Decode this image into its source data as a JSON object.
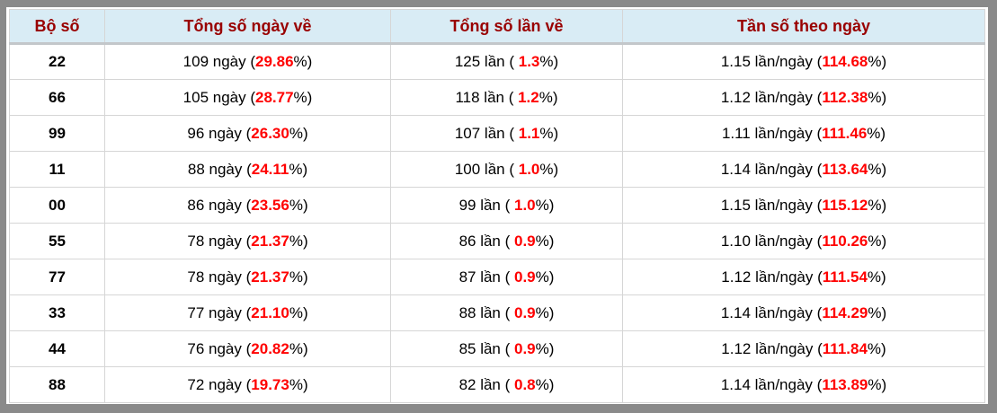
{
  "colors": {
    "frame_gray": "#8a8a8a",
    "header_bg": "#d9ecf5",
    "header_text": "#990000",
    "highlight_red": "#ff0000",
    "grid_line": "#d6d6d6",
    "header_separator": "#c3c7ca",
    "body_text": "#000000",
    "cell_bg": "#ffffff"
  },
  "table": {
    "columns": [
      "Bộ số",
      "Tổng số ngày về",
      "Tổng số lần về",
      "Tần số theo ngày"
    ],
    "format": {
      "paren_open": " (",
      "paren_open_spaced": " ( ",
      "paren_close": "%)"
    },
    "rows": [
      {
        "pair": "22",
        "days": "109 ngày",
        "days_pct": "29.86",
        "times": "125 lần",
        "times_pct": "1.3",
        "freq": "1.15 lần/ngày",
        "freq_pct": "114.68"
      },
      {
        "pair": "66",
        "days": "105 ngày",
        "days_pct": "28.77",
        "times": "118 lần",
        "times_pct": "1.2",
        "freq": "1.12 lần/ngày",
        "freq_pct": "112.38"
      },
      {
        "pair": "99",
        "days": "96 ngày",
        "days_pct": "26.30",
        "times": "107 lần",
        "times_pct": "1.1",
        "freq": "1.11 lần/ngày",
        "freq_pct": "111.46"
      },
      {
        "pair": "11",
        "days": "88 ngày",
        "days_pct": "24.11",
        "times": "100 lần",
        "times_pct": "1.0",
        "freq": "1.14 lần/ngày",
        "freq_pct": "113.64"
      },
      {
        "pair": "00",
        "days": "86 ngày",
        "days_pct": "23.56",
        "times": "99 lần",
        "times_pct": "1.0",
        "freq": "1.15 lần/ngày",
        "freq_pct": "115.12"
      },
      {
        "pair": "55",
        "days": "78 ngày",
        "days_pct": "21.37",
        "times": "86 lần",
        "times_pct": "0.9",
        "freq": "1.10 lần/ngày",
        "freq_pct": "110.26"
      },
      {
        "pair": "77",
        "days": "78 ngày",
        "days_pct": "21.37",
        "times": "87 lần",
        "times_pct": "0.9",
        "freq": "1.12 lần/ngày",
        "freq_pct": "111.54"
      },
      {
        "pair": "33",
        "days": "77 ngày",
        "days_pct": "21.10",
        "times": "88 lần",
        "times_pct": "0.9",
        "freq": "1.14 lần/ngày",
        "freq_pct": "114.29"
      },
      {
        "pair": "44",
        "days": "76 ngày",
        "days_pct": "20.82",
        "times": "85 lần",
        "times_pct": "0.9",
        "freq": "1.12 lần/ngày",
        "freq_pct": "111.84"
      },
      {
        "pair": "88",
        "days": "72 ngày",
        "days_pct": "19.73",
        "times": "82 lần",
        "times_pct": "0.8",
        "freq": "1.14 lần/ngày",
        "freq_pct": "113.89"
      }
    ]
  }
}
